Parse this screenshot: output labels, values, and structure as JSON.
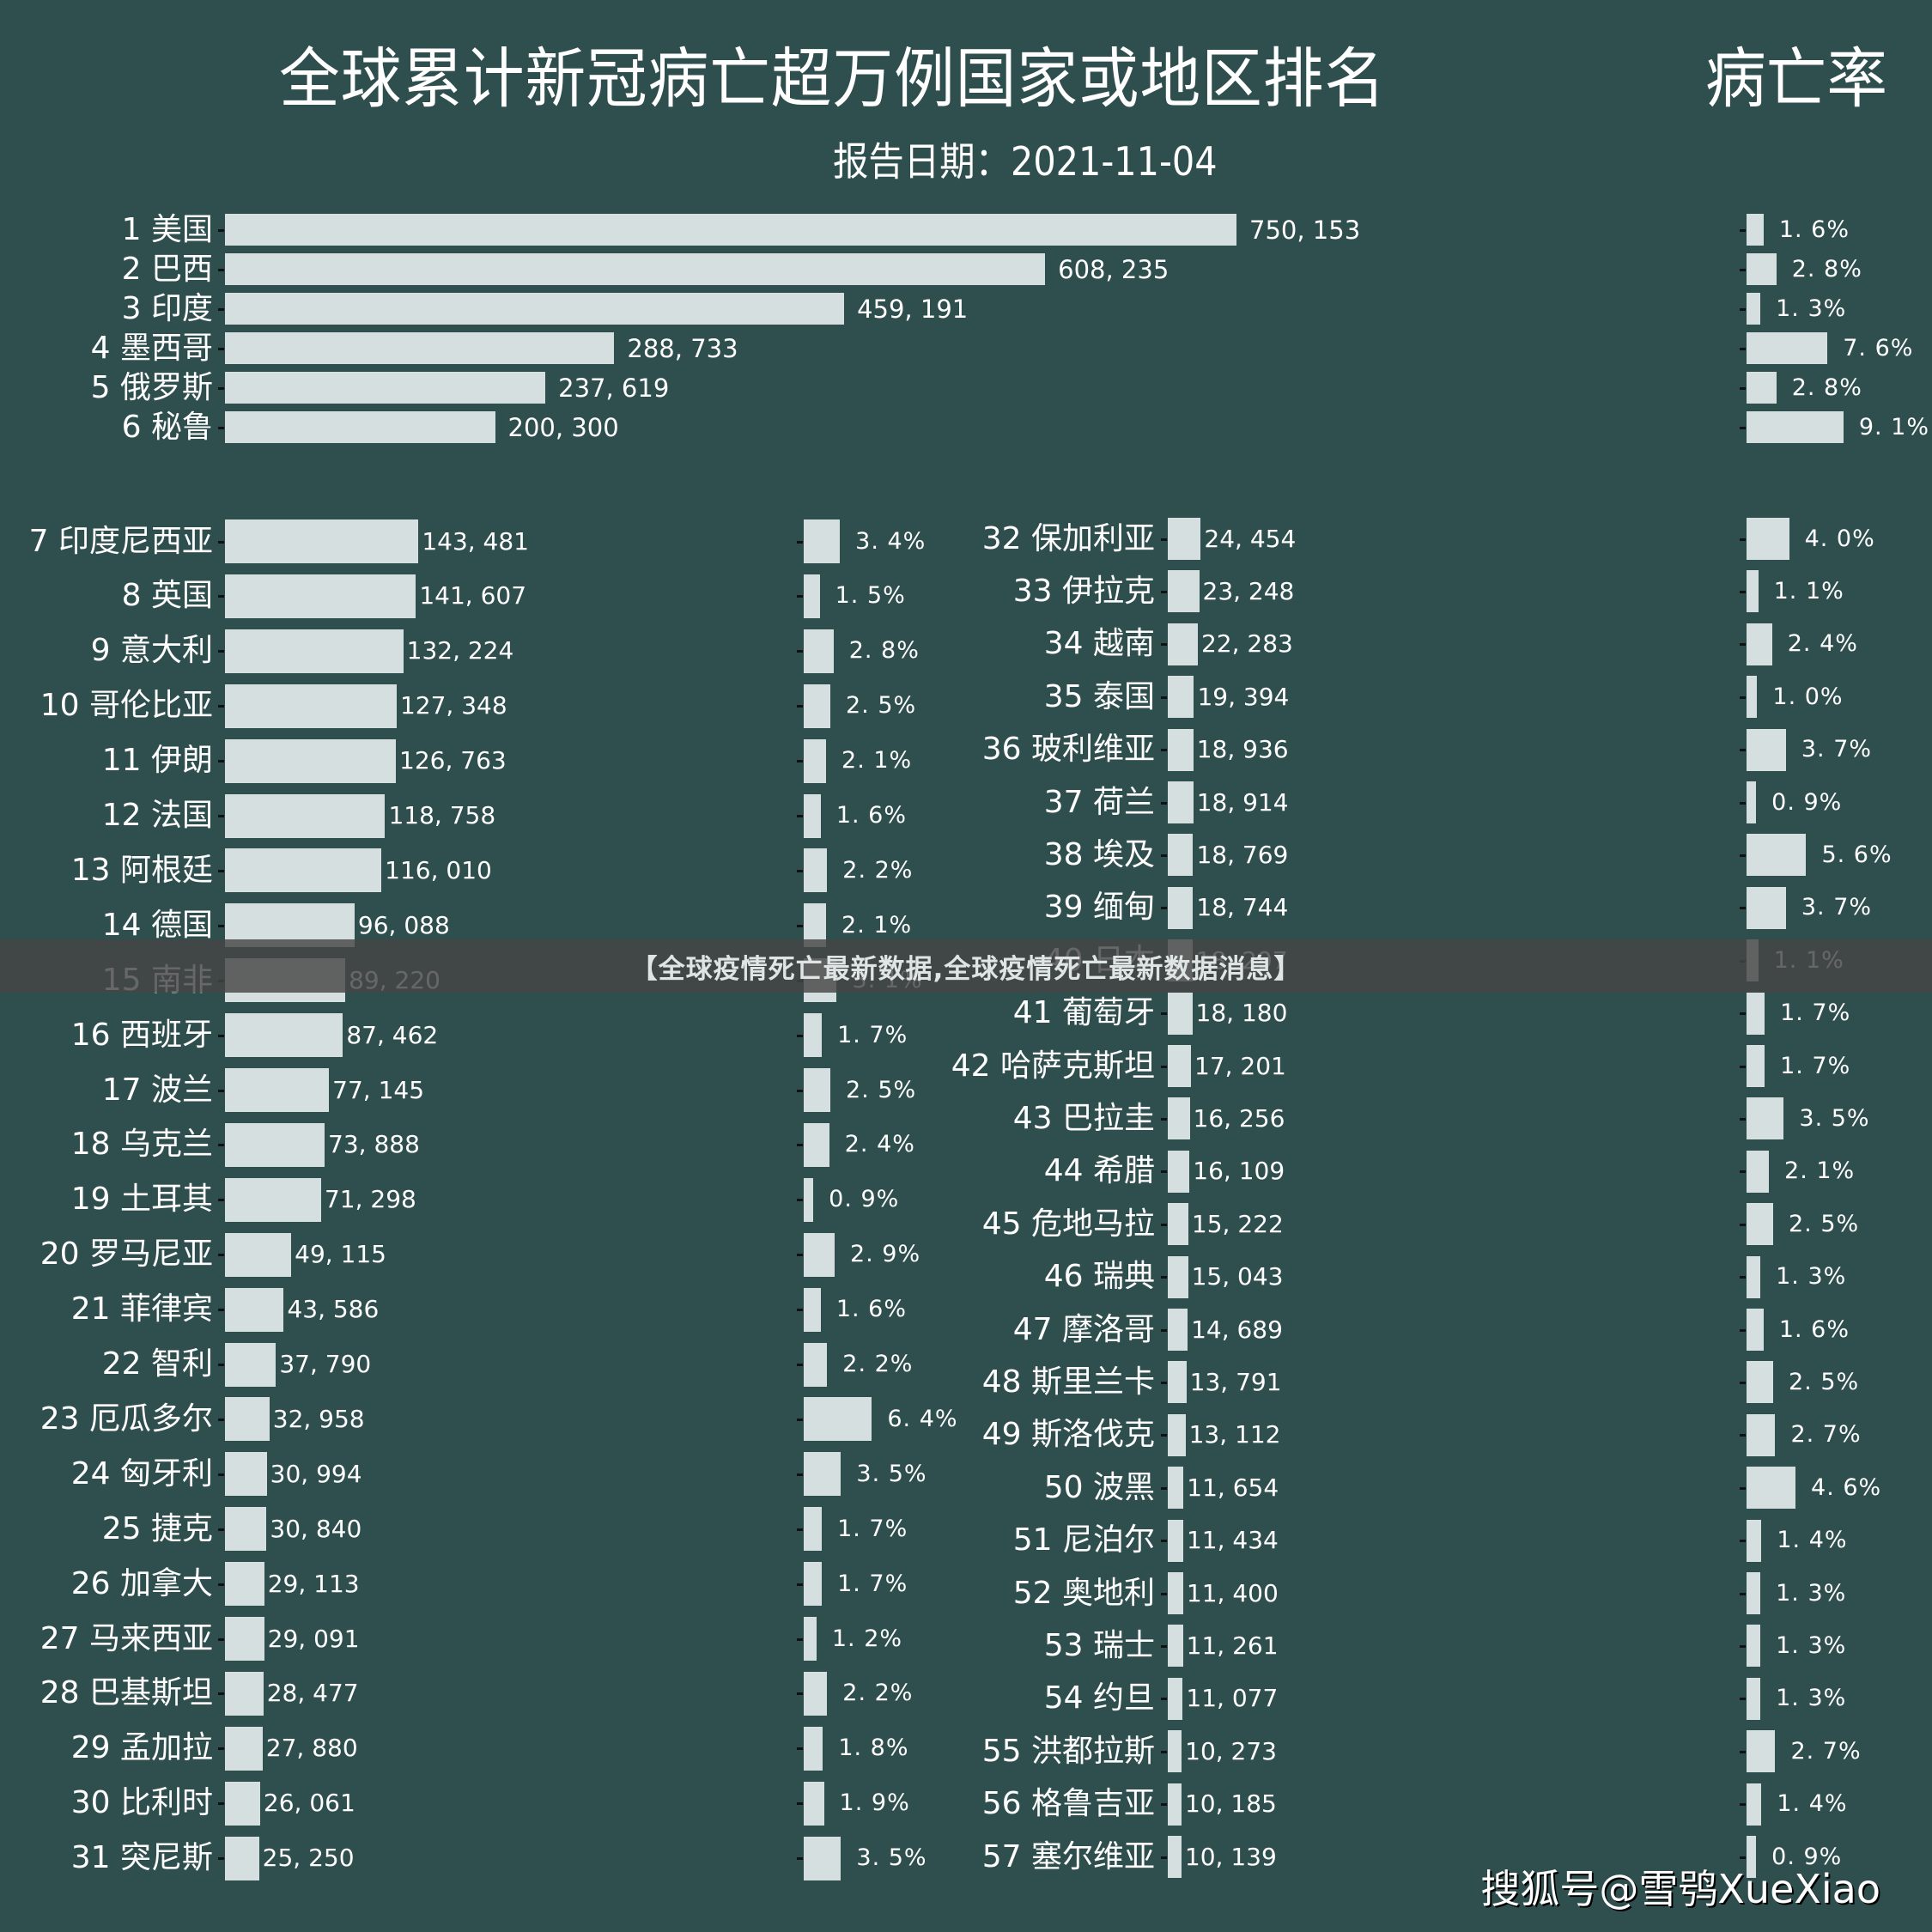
{
  "header": {
    "title": "全球累计新冠病亡超万例国家或地区排名",
    "rate_title": "病亡率",
    "subtitle": "报告日期：2021-11-04"
  },
  "banner": {
    "text": "【全球疫情死亡最新数据,全球疫情死亡最新数据消息】"
  },
  "watermark": {
    "text": "搜狐号@雪鸮XueXiao"
  },
  "colors": {
    "background": "#2f4f4f",
    "bar": "#d5dfdf",
    "text": "#ffffff",
    "banner": "#464646"
  },
  "chart_data": {
    "type": "bar",
    "orientation": "horizontal",
    "title": "全球累计新冠病亡超万例国家或地区排名",
    "subtitle": "报告日期：2021-11-04",
    "secondary_title": "病亡率",
    "xlabel": "累计死亡",
    "ylabel": "",
    "grid": false,
    "legend": "none",
    "series": [
      {
        "name": "累计死亡",
        "unit": "deaths"
      },
      {
        "name": "病亡率",
        "unit": "%"
      }
    ],
    "rows": [
      {
        "rank": 1,
        "name": "美国",
        "deaths": 750153,
        "deaths_label": "750,153",
        "rate": 1.6,
        "rate_label": "1.6%"
      },
      {
        "rank": 2,
        "name": "巴西",
        "deaths": 608235,
        "deaths_label": "608,235",
        "rate": 2.8,
        "rate_label": "2.8%"
      },
      {
        "rank": 3,
        "name": "印度",
        "deaths": 459191,
        "deaths_label": "459,191",
        "rate": 1.3,
        "rate_label": "1.3%"
      },
      {
        "rank": 4,
        "name": "墨西哥",
        "deaths": 288733,
        "deaths_label": "288,733",
        "rate": 7.6,
        "rate_label": "7.6%"
      },
      {
        "rank": 5,
        "name": "俄罗斯",
        "deaths": 237619,
        "deaths_label": "237,619",
        "rate": 2.8,
        "rate_label": "2.8%"
      },
      {
        "rank": 6,
        "name": "秘鲁",
        "deaths": 200300,
        "deaths_label": "200,300",
        "rate": 9.1,
        "rate_label": "9.1%"
      },
      {
        "rank": 7,
        "name": "印度尼西亚",
        "deaths": 143481,
        "deaths_label": "143,481",
        "rate": 3.4,
        "rate_label": "3.4%"
      },
      {
        "rank": 8,
        "name": "英国",
        "deaths": 141607,
        "deaths_label": "141,607",
        "rate": 1.5,
        "rate_label": "1.5%"
      },
      {
        "rank": 9,
        "name": "意大利",
        "deaths": 132224,
        "deaths_label": "132,224",
        "rate": 2.8,
        "rate_label": "2.8%"
      },
      {
        "rank": 10,
        "name": "哥伦比亚",
        "deaths": 127348,
        "deaths_label": "127,348",
        "rate": 2.5,
        "rate_label": "2.5%"
      },
      {
        "rank": 11,
        "name": "伊朗",
        "deaths": 126763,
        "deaths_label": "126,763",
        "rate": 2.1,
        "rate_label": "2.1%"
      },
      {
        "rank": 12,
        "name": "法国",
        "deaths": 118758,
        "deaths_label": "118,758",
        "rate": 1.6,
        "rate_label": "1.6%"
      },
      {
        "rank": 13,
        "name": "阿根廷",
        "deaths": 116010,
        "deaths_label": "116,010",
        "rate": 2.2,
        "rate_label": "2.2%"
      },
      {
        "rank": 14,
        "name": "德国",
        "deaths": 96088,
        "deaths_label": "96,088",
        "rate": 2.1,
        "rate_label": "2.1%"
      },
      {
        "rank": 15,
        "name": "南非",
        "deaths": 89220,
        "deaths_label": "89,220",
        "rate": 3.1,
        "rate_label": "3.1%"
      },
      {
        "rank": 16,
        "name": "西班牙",
        "deaths": 87462,
        "deaths_label": "87,462",
        "rate": 1.7,
        "rate_label": "1.7%"
      },
      {
        "rank": 17,
        "name": "波兰",
        "deaths": 77145,
        "deaths_label": "77,145",
        "rate": 2.5,
        "rate_label": "2.5%"
      },
      {
        "rank": 18,
        "name": "乌克兰",
        "deaths": 73888,
        "deaths_label": "73,888",
        "rate": 2.4,
        "rate_label": "2.4%"
      },
      {
        "rank": 19,
        "name": "土耳其",
        "deaths": 71298,
        "deaths_label": "71,298",
        "rate": 0.9,
        "rate_label": "0.9%"
      },
      {
        "rank": 20,
        "name": "罗马尼亚",
        "deaths": 49115,
        "deaths_label": "49,115",
        "rate": 2.9,
        "rate_label": "2.9%"
      },
      {
        "rank": 21,
        "name": "菲律宾",
        "deaths": 43586,
        "deaths_label": "43,586",
        "rate": 1.6,
        "rate_label": "1.6%"
      },
      {
        "rank": 22,
        "name": "智利",
        "deaths": 37790,
        "deaths_label": "37,790",
        "rate": 2.2,
        "rate_label": "2.2%"
      },
      {
        "rank": 23,
        "name": "厄瓜多尔",
        "deaths": 32958,
        "deaths_label": "32,958",
        "rate": 6.4,
        "rate_label": "6.4%"
      },
      {
        "rank": 24,
        "name": "匈牙利",
        "deaths": 30994,
        "deaths_label": "30,994",
        "rate": 3.5,
        "rate_label": "3.5%"
      },
      {
        "rank": 25,
        "name": "捷克",
        "deaths": 30840,
        "deaths_label": "30,840",
        "rate": 1.7,
        "rate_label": "1.7%"
      },
      {
        "rank": 26,
        "name": "加拿大",
        "deaths": 29113,
        "deaths_label": "29,113",
        "rate": 1.7,
        "rate_label": "1.7%"
      },
      {
        "rank": 27,
        "name": "马来西亚",
        "deaths": 29091,
        "deaths_label": "29,091",
        "rate": 1.2,
        "rate_label": "1.2%"
      },
      {
        "rank": 28,
        "name": "巴基斯坦",
        "deaths": 28477,
        "deaths_label": "28,477",
        "rate": 2.2,
        "rate_label": "2.2%"
      },
      {
        "rank": 29,
        "name": "孟加拉",
        "deaths": 27880,
        "deaths_label": "27,880",
        "rate": 1.8,
        "rate_label": "1.8%"
      },
      {
        "rank": 30,
        "name": "比利时",
        "deaths": 26061,
        "deaths_label": "26,061",
        "rate": 1.9,
        "rate_label": "1.9%"
      },
      {
        "rank": 31,
        "name": "突尼斯",
        "deaths": 25250,
        "deaths_label": "25,250",
        "rate": 3.5,
        "rate_label": "3.5%"
      },
      {
        "rank": 32,
        "name": "保加利亚",
        "deaths": 24454,
        "deaths_label": "24,454",
        "rate": 4.0,
        "rate_label": "4.0%"
      },
      {
        "rank": 33,
        "name": "伊拉克",
        "deaths": 23248,
        "deaths_label": "23,248",
        "rate": 1.1,
        "rate_label": "1.1%"
      },
      {
        "rank": 34,
        "name": "越南",
        "deaths": 22283,
        "deaths_label": "22,283",
        "rate": 2.4,
        "rate_label": "2.4%"
      },
      {
        "rank": 35,
        "name": "泰国",
        "deaths": 19394,
        "deaths_label": "19,394",
        "rate": 1.0,
        "rate_label": "1.0%"
      },
      {
        "rank": 36,
        "name": "玻利维亚",
        "deaths": 18936,
        "deaths_label": "18,936",
        "rate": 3.7,
        "rate_label": "3.7%"
      },
      {
        "rank": 37,
        "name": "荷兰",
        "deaths": 18914,
        "deaths_label": "18,914",
        "rate": 0.9,
        "rate_label": "0.9%"
      },
      {
        "rank": 38,
        "name": "埃及",
        "deaths": 18769,
        "deaths_label": "18,769",
        "rate": 5.6,
        "rate_label": "5.6%"
      },
      {
        "rank": 39,
        "name": "缅甸",
        "deaths": 18744,
        "deaths_label": "18,744",
        "rate": 3.7,
        "rate_label": "3.7%"
      },
      {
        "rank": 40,
        "name": "日本",
        "deaths": 18297,
        "deaths_label": "18,297",
        "rate": 1.1,
        "rate_label": "1.1%"
      },
      {
        "rank": 41,
        "name": "葡萄牙",
        "deaths": 18180,
        "deaths_label": "18,180",
        "rate": 1.7,
        "rate_label": "1.7%"
      },
      {
        "rank": 42,
        "name": "哈萨克斯坦",
        "deaths": 17201,
        "deaths_label": "17,201",
        "rate": 1.7,
        "rate_label": "1.7%"
      },
      {
        "rank": 43,
        "name": "巴拉圭",
        "deaths": 16256,
        "deaths_label": "16,256",
        "rate": 3.5,
        "rate_label": "3.5%"
      },
      {
        "rank": 44,
        "name": "希腊",
        "deaths": 16109,
        "deaths_label": "16,109",
        "rate": 2.1,
        "rate_label": "2.1%"
      },
      {
        "rank": 45,
        "name": "危地马拉",
        "deaths": 15222,
        "deaths_label": "15,222",
        "rate": 2.5,
        "rate_label": "2.5%"
      },
      {
        "rank": 46,
        "name": "瑞典",
        "deaths": 15043,
        "deaths_label": "15,043",
        "rate": 1.3,
        "rate_label": "1.3%"
      },
      {
        "rank": 47,
        "name": "摩洛哥",
        "deaths": 14689,
        "deaths_label": "14,689",
        "rate": 1.6,
        "rate_label": "1.6%"
      },
      {
        "rank": 48,
        "name": "斯里兰卡",
        "deaths": 13791,
        "deaths_label": "13,791",
        "rate": 2.5,
        "rate_label": "2.5%"
      },
      {
        "rank": 49,
        "name": "斯洛伐克",
        "deaths": 13112,
        "deaths_label": "13,112",
        "rate": 2.7,
        "rate_label": "2.7%"
      },
      {
        "rank": 50,
        "name": "波黑",
        "deaths": 11654,
        "deaths_label": "11,654",
        "rate": 4.6,
        "rate_label": "4.6%"
      },
      {
        "rank": 51,
        "name": "尼泊尔",
        "deaths": 11434,
        "deaths_label": "11,434",
        "rate": 1.4,
        "rate_label": "1.4%"
      },
      {
        "rank": 52,
        "name": "奥地利",
        "deaths": 11400,
        "deaths_label": "11,400",
        "rate": 1.3,
        "rate_label": "1.3%"
      },
      {
        "rank": 53,
        "name": "瑞士",
        "deaths": 11261,
        "deaths_label": "11,261",
        "rate": 1.3,
        "rate_label": "1.3%"
      },
      {
        "rank": 54,
        "name": "约旦",
        "deaths": 11077,
        "deaths_label": "11,077",
        "rate": 1.3,
        "rate_label": "1.3%"
      },
      {
        "rank": 55,
        "name": "洪都拉斯",
        "deaths": 10273,
        "deaths_label": "10,273",
        "rate": 2.7,
        "rate_label": "2.7%"
      },
      {
        "rank": 56,
        "name": "格鲁吉亚",
        "deaths": 10185,
        "deaths_label": "10,185",
        "rate": 1.4,
        "rate_label": "1.4%"
      },
      {
        "rank": 57,
        "name": "塞尔维亚",
        "deaths": 10139,
        "deaths_label": "10,139",
        "rate": 0.9,
        "rate_label": "0.9%"
      }
    ],
    "panels": [
      {
        "name": "top",
        "ranks": [
          1,
          6
        ]
      },
      {
        "name": "lower-left",
        "ranks": [
          7,
          31
        ]
      },
      {
        "name": "lower-right",
        "ranks": [
          32,
          57
        ]
      }
    ]
  }
}
